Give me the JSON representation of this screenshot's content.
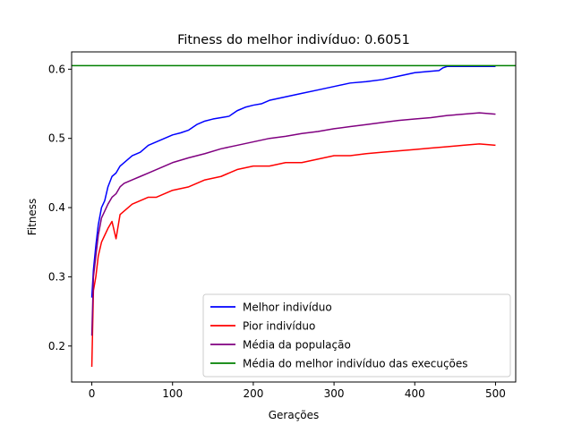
{
  "chart_data": {
    "type": "line",
    "title": "Fitness do melhor indivíduo: 0.6051",
    "xlabel": "Gerações",
    "ylabel": "Fitness",
    "xlim": [
      -25,
      525
    ],
    "ylim": [
      0.148,
      0.625
    ],
    "xticks": [
      0,
      100,
      200,
      300,
      400,
      500
    ],
    "yticks": [
      0.2,
      0.3,
      0.4,
      0.5,
      0.6
    ],
    "grid": false,
    "legend_position": "lower-right",
    "series": [
      {
        "name": "Melhor indivíduo",
        "color": "#0000ff",
        "x": [
          0,
          2,
          5,
          8,
          12,
          16,
          20,
          25,
          30,
          35,
          40,
          50,
          60,
          70,
          80,
          90,
          100,
          110,
          120,
          130,
          140,
          150,
          160,
          170,
          180,
          190,
          200,
          210,
          220,
          240,
          260,
          280,
          300,
          320,
          340,
          360,
          380,
          400,
          420,
          430,
          435,
          440,
          460,
          480,
          500
        ],
        "y": [
          0.27,
          0.31,
          0.345,
          0.375,
          0.4,
          0.41,
          0.43,
          0.445,
          0.45,
          0.46,
          0.465,
          0.475,
          0.48,
          0.49,
          0.495,
          0.5,
          0.505,
          0.508,
          0.512,
          0.52,
          0.525,
          0.528,
          0.53,
          0.532,
          0.54,
          0.545,
          0.548,
          0.55,
          0.555,
          0.56,
          0.565,
          0.57,
          0.575,
          0.58,
          0.582,
          0.585,
          0.59,
          0.595,
          0.597,
          0.598,
          0.602,
          0.604,
          0.604,
          0.604,
          0.604
        ]
      },
      {
        "name": "Pior indivíduo",
        "color": "#ff0000",
        "x": [
          0,
          2,
          5,
          8,
          12,
          16,
          20,
          25,
          30,
          35,
          40,
          50,
          60,
          70,
          80,
          90,
          100,
          120,
          140,
          160,
          180,
          200,
          220,
          240,
          260,
          280,
          300,
          320,
          340,
          360,
          380,
          400,
          420,
          440,
          460,
          480,
          500
        ],
        "y": [
          0.17,
          0.28,
          0.3,
          0.33,
          0.35,
          0.36,
          0.37,
          0.38,
          0.355,
          0.39,
          0.395,
          0.405,
          0.41,
          0.415,
          0.415,
          0.42,
          0.425,
          0.43,
          0.44,
          0.445,
          0.455,
          0.46,
          0.46,
          0.465,
          0.465,
          0.47,
          0.475,
          0.475,
          0.478,
          0.48,
          0.482,
          0.484,
          0.486,
          0.488,
          0.49,
          0.492,
          0.49
        ]
      },
      {
        "name": "Média da população",
        "color": "#800080",
        "x": [
          0,
          2,
          5,
          8,
          12,
          16,
          20,
          25,
          30,
          35,
          40,
          50,
          60,
          70,
          80,
          90,
          100,
          120,
          140,
          160,
          180,
          200,
          220,
          240,
          260,
          280,
          300,
          320,
          340,
          360,
          380,
          400,
          420,
          440,
          460,
          480,
          500
        ],
        "y": [
          0.215,
          0.3,
          0.33,
          0.36,
          0.385,
          0.395,
          0.405,
          0.415,
          0.42,
          0.43,
          0.435,
          0.44,
          0.445,
          0.45,
          0.455,
          0.46,
          0.465,
          0.472,
          0.478,
          0.485,
          0.49,
          0.495,
          0.5,
          0.503,
          0.507,
          0.51,
          0.514,
          0.517,
          0.52,
          0.523,
          0.526,
          0.528,
          0.53,
          0.533,
          0.535,
          0.537,
          0.535
        ]
      },
      {
        "name": "Média do melhor indivíduo das execuções",
        "color": "#008000",
        "x": [
          -25,
          525
        ],
        "y": [
          0.6051,
          0.6051
        ]
      }
    ]
  }
}
